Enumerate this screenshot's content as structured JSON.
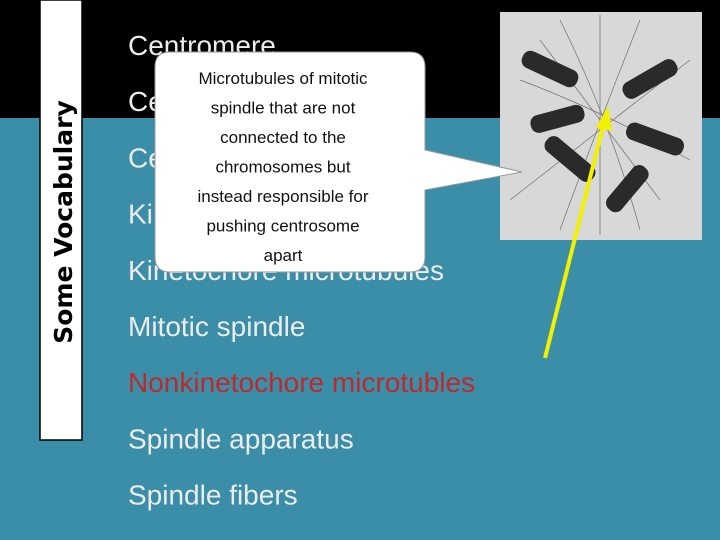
{
  "sidebar_title": "Some Vocabulary",
  "terms": [
    "Centromere",
    "Centrosome",
    "Centrioles",
    "Kinetochore",
    "Kinetochore microtubules",
    "Mitotic spindle",
    "Nonkinetochore microtubles",
    "Spindle apparatus",
    "Spindle fibers"
  ],
  "callout": {
    "lines": [
      "Microtubules of mitotic",
      "spindle that are not",
      "connected to the",
      "chromosomes but",
      "instead responsible for",
      "pushing centrosome",
      "apart"
    ]
  }
}
